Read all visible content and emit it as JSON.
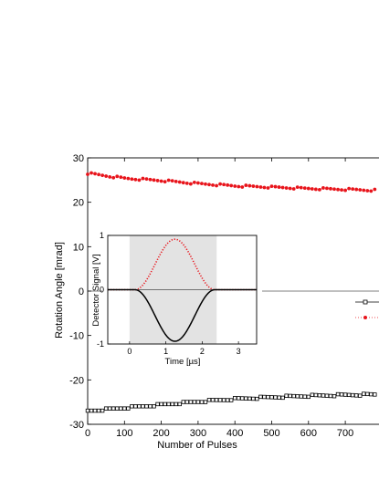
{
  "chart_data": [
    {
      "type": "scatter",
      "xlabel": "Number of Pulses",
      "ylabel": "Rotation Angle [mrad]",
      "xlim": [
        0,
        800
      ],
      "ylim": [
        -30,
        30
      ],
      "xticks": [
        0,
        100,
        200,
        300,
        400,
        500,
        600,
        700
      ],
      "yticks": [
        -30,
        -20,
        -10,
        0,
        10,
        20,
        30
      ],
      "grid": false,
      "legend_position": "right (partially cropped)",
      "reference_line_y": 0,
      "series": [
        {
          "color": "#e8141b",
          "marker": "filled-circle",
          "line": "dotted",
          "trend_x": [
            0,
            100,
            200,
            300,
            400,
            500,
            600,
            700,
            780
          ],
          "trend_y": [
            26.5,
            25.4,
            24.9,
            24.2,
            23.7,
            23.4,
            23.1,
            22.9,
            22.7
          ]
        },
        {
          "color": "#000000",
          "marker": "open-square",
          "line": "solid",
          "trend_x": [
            0,
            100,
            200,
            300,
            400,
            500,
            600,
            700,
            780
          ],
          "trend_y": [
            -27.0,
            -26.3,
            -25.6,
            -24.9,
            -24.3,
            -23.9,
            -23.6,
            -23.4,
            -23.3
          ]
        }
      ]
    },
    {
      "type": "line",
      "xlabel": "Time [µs]",
      "ylabel": "Detector Signal [V]",
      "xlim": [
        -0.6,
        3.5
      ],
      "ylim": [
        -1,
        1
      ],
      "xticks": [
        0,
        1,
        2,
        3
      ],
      "yticks": [
        -1,
        0,
        1
      ],
      "shaded_region_x": [
        0,
        2.4
      ],
      "series": [
        {
          "color": "#e8141b",
          "line": "dotted",
          "shape": "positive pulse",
          "peak_time": 1.2,
          "peak_value": 0.93,
          "pulse_start": 0.15,
          "pulse_end": 2.35
        },
        {
          "color": "#000000",
          "line": "solid",
          "shape": "negative pulse",
          "peak_time": 1.2,
          "peak_value": -0.95,
          "pulse_start": 0.15,
          "pulse_end": 2.35
        }
      ]
    }
  ]
}
